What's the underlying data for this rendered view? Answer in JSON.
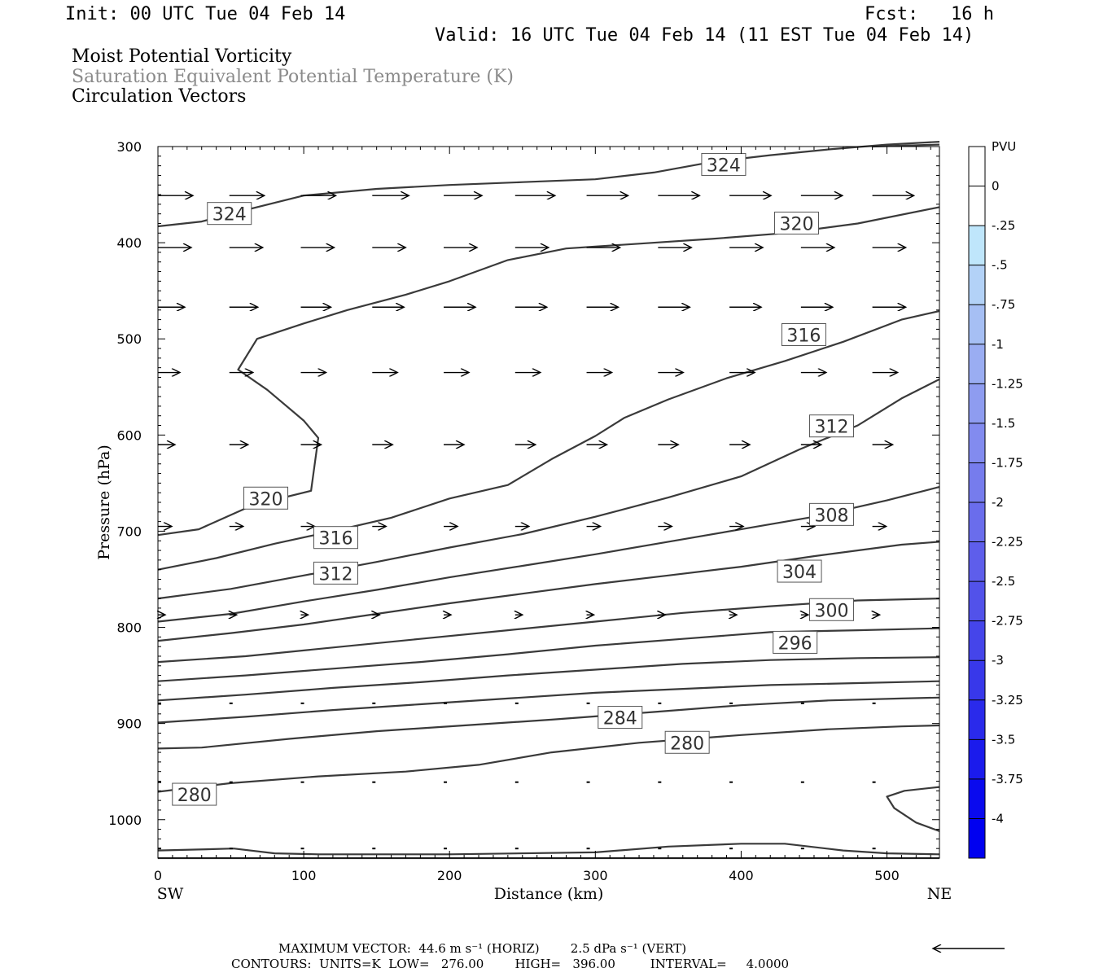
{
  "header": {
    "init": "Init: 00 UTC Tue 04 Feb 14",
    "fcst": "Fcst:   16 h",
    "valid": "Valid: 16 UTC Tue 04 Feb 14 (11 EST Tue 04 Feb 14)",
    "line1": "Moist Potential Vorticity",
    "line2": "Saturation Equivalent Potential Temperature (K)",
    "line3": "Circulation Vectors"
  },
  "footer": {
    "max_vector": "MAXIMUM VECTOR:  44.6 m s⁻¹ (HORIZ)        2.5 dPa s⁻¹ (VERT)",
    "contours": "CONTOURS:  UNITS=K  LOW=   276.00        HIGH=   396.00         INTERVAL=     4.0000"
  },
  "chart_data": {
    "type": "cross-section contour",
    "xlabel": "Distance (km)",
    "ylabel": "Pressure (hPa)",
    "xlim": [
      0,
      536
    ],
    "ylim": [
      1040,
      300
    ],
    "x_ticks": [
      0,
      100,
      200,
      300,
      400,
      500
    ],
    "y_ticks": [
      300,
      400,
      500,
      600,
      700,
      800,
      900,
      1000
    ],
    "x_end_labels": {
      "left": "SW",
      "right": "NE"
    },
    "colorbar": {
      "title": "PVU",
      "levels": [
        "0",
        "-.25",
        "-.5",
        "-.75",
        "-1",
        "-1.25",
        "-1.5",
        "-1.75",
        "-2",
        "-2.25",
        "-2.5",
        "-2.75",
        "-3",
        "-3.25",
        "-3.5",
        "-3.75",
        "-4"
      ],
      "colors": [
        "#ffffff",
        "#ffffff",
        "#bfe6fb",
        "#b3d2f7",
        "#a6bff4",
        "#9aadf2",
        "#8e9cf0",
        "#828bef",
        "#767ced",
        "#6a6dec",
        "#5e5eeb",
        "#5252ea",
        "#4545ea",
        "#3838ea",
        "#2a2aeb",
        "#1b1bec",
        "#0a0aee",
        "#0000f0"
      ]
    },
    "contours": [
      {
        "level": "324",
        "points": [
          [
            0,
            383
          ],
          [
            30,
            378
          ],
          [
            60,
            366
          ],
          [
            100,
            351
          ],
          [
            150,
            344
          ],
          [
            200,
            340
          ],
          [
            250,
            337
          ],
          [
            300,
            334
          ],
          [
            340,
            327
          ],
          [
            380,
            316
          ],
          [
            420,
            309
          ],
          [
            460,
            303
          ],
          [
            500,
            298
          ],
          [
            536,
            295
          ]
        ]
      },
      {
        "level": "324",
        "points": [
          [
            490,
            300
          ],
          [
            536,
            298
          ]
        ]
      },
      {
        "level": "320",
        "points": [
          [
            0,
            704
          ],
          [
            28,
            698
          ],
          [
            65,
            673
          ],
          [
            105,
            658
          ],
          [
            110,
            603
          ],
          [
            100,
            585
          ],
          [
            75,
            553
          ],
          [
            55,
            532
          ],
          [
            68,
            500
          ],
          [
            100,
            484
          ],
          [
            130,
            470
          ],
          [
            170,
            454
          ],
          [
            200,
            440
          ],
          [
            240,
            418
          ],
          [
            280,
            406
          ],
          [
            330,
            401
          ],
          [
            380,
            396
          ],
          [
            430,
            390
          ],
          [
            480,
            380
          ],
          [
            536,
            363
          ]
        ]
      },
      {
        "level": "316",
        "points": [
          [
            0,
            740
          ],
          [
            40,
            728
          ],
          [
            80,
            713
          ],
          [
            120,
            700
          ],
          [
            160,
            686
          ],
          [
            200,
            666
          ],
          [
            240,
            652
          ],
          [
            270,
            625
          ],
          [
            300,
            601
          ],
          [
            320,
            582
          ],
          [
            350,
            563
          ],
          [
            390,
            541
          ],
          [
            430,
            523
          ],
          [
            470,
            503
          ],
          [
            510,
            480
          ],
          [
            536,
            471
          ]
        ]
      },
      {
        "level": "312",
        "points": [
          [
            0,
            770
          ],
          [
            50,
            760
          ],
          [
            100,
            746
          ],
          [
            150,
            732
          ],
          [
            200,
            717
          ],
          [
            250,
            703
          ],
          [
            300,
            685
          ],
          [
            350,
            665
          ],
          [
            400,
            643
          ],
          [
            440,
            615
          ],
          [
            480,
            590
          ],
          [
            510,
            562
          ],
          [
            536,
            542
          ]
        ]
      },
      {
        "level": "308",
        "points": [
          [
            0,
            794
          ],
          [
            50,
            786
          ],
          [
            100,
            773
          ],
          [
            150,
            761
          ],
          [
            200,
            748
          ],
          [
            250,
            736
          ],
          [
            300,
            724
          ],
          [
            350,
            711
          ],
          [
            400,
            698
          ],
          [
            450,
            685
          ],
          [
            500,
            668
          ],
          [
            536,
            654
          ]
        ]
      },
      {
        "level": "304",
        "points": [
          [
            0,
            814
          ],
          [
            50,
            806
          ],
          [
            100,
            797
          ],
          [
            150,
            786
          ],
          [
            200,
            775
          ],
          [
            250,
            765
          ],
          [
            300,
            755
          ],
          [
            350,
            746
          ],
          [
            400,
            737
          ],
          [
            450,
            726
          ],
          [
            510,
            714
          ],
          [
            536,
            711
          ]
        ]
      },
      {
        "level": "300",
        "points": [
          [
            0,
            836
          ],
          [
            60,
            830
          ],
          [
            120,
            821
          ],
          [
            180,
            812
          ],
          [
            240,
            803
          ],
          [
            300,
            794
          ],
          [
            360,
            785
          ],
          [
            420,
            778
          ],
          [
            480,
            772
          ],
          [
            536,
            770
          ]
        ]
      },
      {
        "level": "296",
        "points": [
          [
            0,
            856
          ],
          [
            60,
            850
          ],
          [
            120,
            843
          ],
          [
            180,
            836
          ],
          [
            240,
            828
          ],
          [
            300,
            819
          ],
          [
            360,
            812
          ],
          [
            420,
            805
          ],
          [
            480,
            803
          ],
          [
            536,
            801
          ]
        ]
      },
      {
        "level": "292",
        "points": [
          [
            0,
            876
          ],
          [
            60,
            870
          ],
          [
            120,
            863
          ],
          [
            180,
            857
          ],
          [
            240,
            850
          ],
          [
            300,
            844
          ],
          [
            360,
            838
          ],
          [
            420,
            834
          ],
          [
            480,
            832
          ],
          [
            536,
            831
          ]
        ]
      },
      {
        "level": "288",
        "points": [
          [
            0,
            899
          ],
          [
            60,
            893
          ],
          [
            120,
            886
          ],
          [
            180,
            880
          ],
          [
            240,
            874
          ],
          [
            300,
            868
          ],
          [
            360,
            864
          ],
          [
            420,
            860
          ],
          [
            480,
            858
          ],
          [
            536,
            856
          ]
        ]
      },
      {
        "level": "284",
        "points": [
          [
            0,
            926
          ],
          [
            30,
            925
          ],
          [
            90,
            916
          ],
          [
            150,
            908
          ],
          [
            210,
            902
          ],
          [
            270,
            896
          ],
          [
            340,
            888
          ],
          [
            400,
            881
          ],
          [
            460,
            876
          ],
          [
            510,
            874
          ],
          [
            536,
            873
          ]
        ]
      },
      {
        "level": "280",
        "points": [
          [
            0,
            971
          ],
          [
            50,
            962
          ],
          [
            110,
            955
          ],
          [
            170,
            950
          ],
          [
            220,
            943
          ],
          [
            270,
            930
          ],
          [
            330,
            920
          ],
          [
            400,
            912
          ],
          [
            460,
            906
          ],
          [
            510,
            903
          ],
          [
            536,
            902
          ]
        ]
      },
      {
        "level": "280",
        "points": [
          [
            536,
            1012
          ],
          [
            520,
            1003
          ],
          [
            505,
            988
          ],
          [
            500,
            976
          ],
          [
            512,
            970
          ],
          [
            536,
            966
          ]
        ]
      },
      {
        "level": "276",
        "points": [
          [
            0,
            1032
          ],
          [
            28,
            1031
          ],
          [
            52,
            1030
          ],
          [
            80,
            1035
          ],
          [
            110,
            1036
          ],
          [
            200,
            1036
          ],
          [
            300,
            1034
          ],
          [
            350,
            1028
          ],
          [
            400,
            1025
          ],
          [
            430,
            1025
          ],
          [
            470,
            1032
          ],
          [
            500,
            1035
          ],
          [
            536,
            1036
          ]
        ]
      },
      {
        "level": "276",
        "points": [
          [
            0,
            1040
          ],
          [
            300,
            1040
          ],
          [
            536,
            1040
          ]
        ]
      }
    ],
    "contour_labels": [
      {
        "text": "324",
        "x": 49,
        "y": 370
      },
      {
        "text": "324",
        "x": 388,
        "y": 319
      },
      {
        "text": "320",
        "x": 438,
        "y": 380
      },
      {
        "text": "320",
        "x": 74,
        "y": 666
      },
      {
        "text": "316",
        "x": 443,
        "y": 496
      },
      {
        "text": "316",
        "x": 122,
        "y": 707
      },
      {
        "text": "312",
        "x": 462,
        "y": 591
      },
      {
        "text": "312",
        "x": 122,
        "y": 744
      },
      {
        "text": "308",
        "x": 462,
        "y": 683
      },
      {
        "text": "304",
        "x": 440,
        "y": 742
      },
      {
        "text": "300",
        "x": 462,
        "y": 782
      },
      {
        "text": "296",
        "x": 437,
        "y": 816
      },
      {
        "text": "284",
        "x": 317,
        "y": 894
      },
      {
        "text": "280",
        "x": 363,
        "y": 920
      },
      {
        "text": "280",
        "x": 25,
        "y": 974
      }
    ],
    "vector_rows": [
      {
        "p": 351,
        "dx": [
          42,
          42,
          42,
          44,
          46,
          48,
          50,
          50,
          50,
          50,
          50,
          50,
          50
        ]
      },
      {
        "p": 405,
        "dx": [
          40,
          40,
          40,
          40,
          40,
          40,
          40,
          40,
          40,
          40,
          40,
          40,
          40
        ]
      },
      {
        "p": 467,
        "dx": [
          32,
          34,
          36,
          38,
          38,
          38,
          38,
          38,
          38,
          38,
          40,
          40,
          40
        ]
      },
      {
        "p": 535,
        "dx": [
          26,
          28,
          30,
          30,
          30,
          30,
          30,
          30,
          30,
          30,
          30,
          30,
          30
        ]
      },
      {
        "p": 610,
        "dx": [
          20,
          22,
          24,
          24,
          24,
          24,
          24,
          24,
          24,
          24,
          24,
          24,
          24
        ]
      },
      {
        "p": 695,
        "dx": [
          16,
          16,
          16,
          16,
          16,
          16,
          16,
          16,
          16,
          16,
          16,
          16,
          16
        ]
      },
      {
        "p": 787,
        "dx": [
          8,
          8,
          8,
          8,
          8,
          8,
          8,
          8,
          8,
          8,
          8,
          8,
          8
        ]
      },
      {
        "p": 879,
        "dx": [
          2,
          2,
          2,
          2,
          2,
          2,
          2,
          2,
          2,
          2,
          2,
          2,
          2
        ]
      },
      {
        "p": 961,
        "dx": [
          1,
          1,
          1,
          1,
          1,
          1,
          1,
          1,
          1,
          1,
          1,
          1,
          1
        ]
      },
      {
        "p": 1030,
        "dx": [
          1,
          1,
          1,
          1,
          1,
          1,
          1,
          1,
          1,
          1,
          1,
          1,
          1
        ]
      }
    ]
  }
}
